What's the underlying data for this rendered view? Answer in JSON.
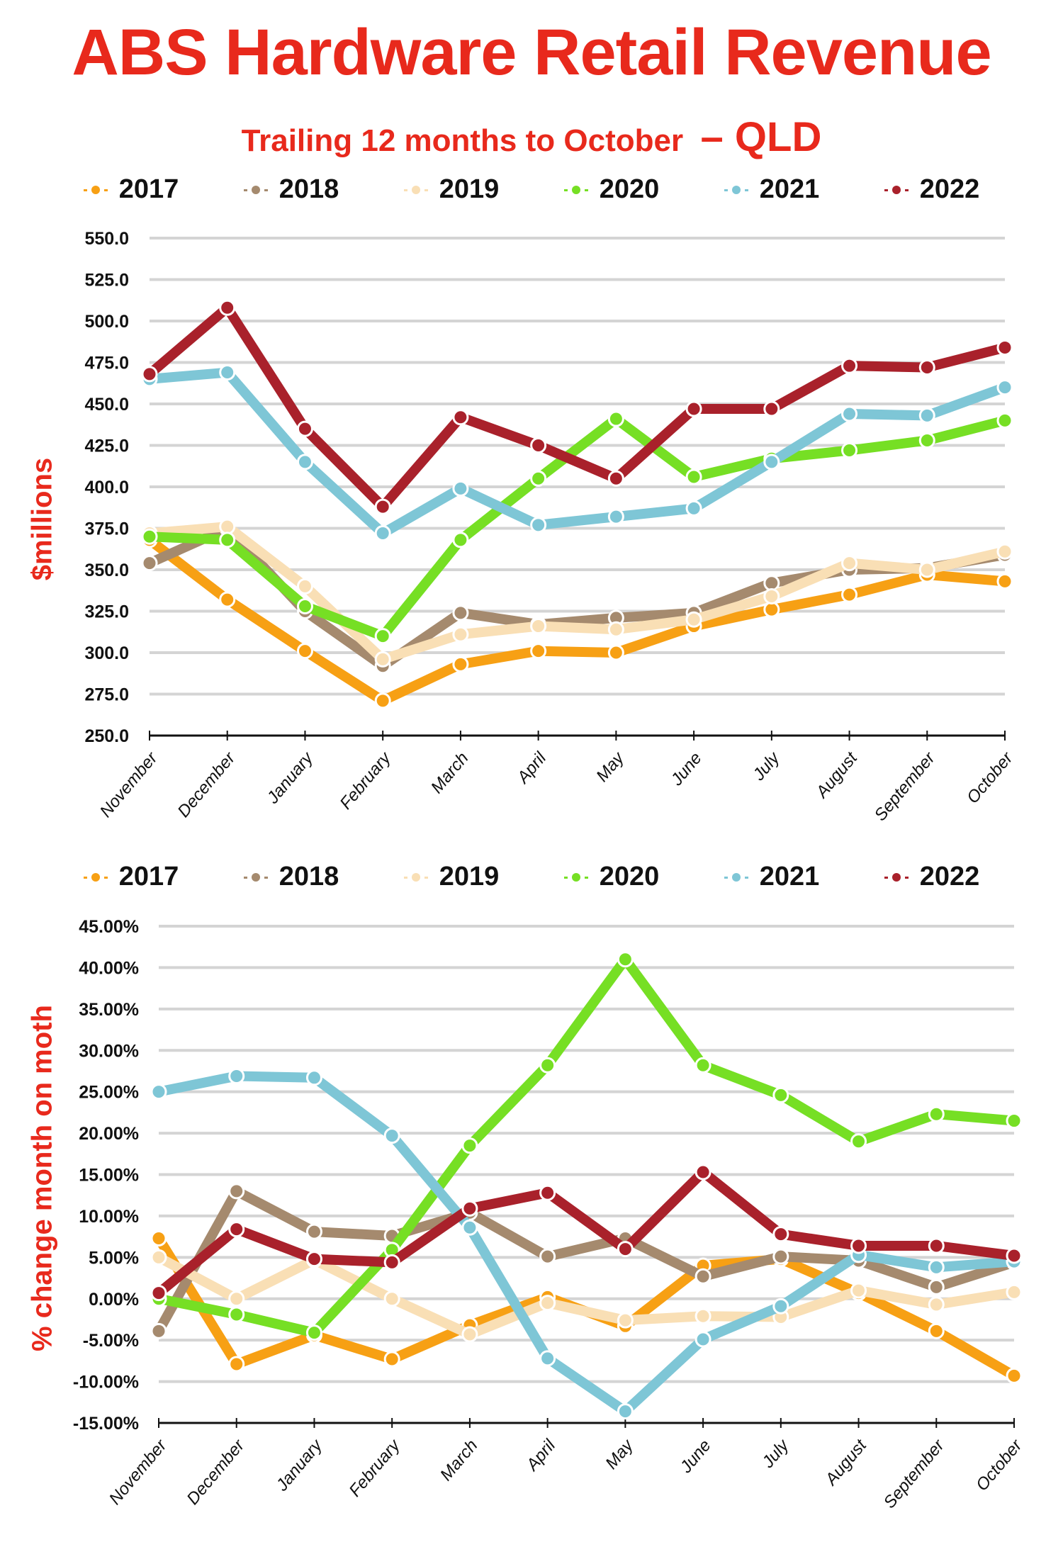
{
  "title": "ABS Hardware Retail Revenue",
  "subtitle": "Trailing 12 months to October",
  "subtitle_suffix": "– QLD",
  "colors": {
    "2017": "#f7a014",
    "2018": "#a58a6e",
    "2019": "#f9dfb5",
    "2020": "#76df24",
    "2021": "#7ec6d6",
    "2022": "#a9212b",
    "accent": "#e8291c"
  },
  "chart_data": [
    {
      "type": "line",
      "title": "ABS Hardware Retail Revenue",
      "subtitle": "Trailing 12 months to October – QLD",
      "xlabel": "",
      "ylabel": "$millions",
      "ylim": [
        250,
        550
      ],
      "yticks": [
        250,
        275,
        300,
        325,
        350,
        375,
        400,
        425,
        450,
        475,
        500,
        525,
        550
      ],
      "ytick_labels": [
        "250.0",
        "275.0",
        "300.0",
        "325.0",
        "350.0",
        "375.0",
        "400.0",
        "425.0",
        "450.0",
        "475.0",
        "500.0",
        "525.0",
        "550.0"
      ],
      "grid": true,
      "legend": "top",
      "categories": [
        "November",
        "December",
        "January",
        "February",
        "March",
        "April",
        "May",
        "June",
        "July",
        "August",
        "September",
        "October"
      ],
      "series": [
        {
          "name": "2017",
          "values": [
            368,
            332,
            301,
            271,
            293,
            301,
            300,
            316,
            326,
            335,
            347,
            343
          ]
        },
        {
          "name": "2018",
          "values": [
            354,
            375,
            325,
            292,
            324,
            317,
            321,
            324,
            342,
            350,
            351,
            359
          ]
        },
        {
          "name": "2019",
          "values": [
            372,
            376,
            340,
            296,
            311,
            316,
            314,
            320,
            334,
            354,
            350,
            361
          ]
        },
        {
          "name": "2020",
          "values": [
            370,
            368,
            328,
            310,
            368,
            405,
            441,
            406,
            417,
            422,
            428,
            440
          ]
        },
        {
          "name": "2021",
          "values": [
            465,
            469,
            415,
            372,
            399,
            377,
            382,
            387,
            415,
            444,
            443,
            460
          ]
        },
        {
          "name": "2022",
          "values": [
            468,
            508,
            435,
            388,
            442,
            425,
            405,
            447,
            447,
            473,
            472,
            484
          ]
        }
      ]
    },
    {
      "type": "line",
      "title": "",
      "xlabel": "",
      "ylabel": "% change month on moth",
      "ylim": [
        -15,
        45
      ],
      "yticks": [
        -15,
        -10,
        -5,
        0,
        5,
        10,
        15,
        20,
        25,
        30,
        35,
        40,
        45
      ],
      "ytick_labels": [
        "-15.00%",
        "-10.00%",
        "-5.00%",
        "0.00%",
        "5.00%",
        "10.00%",
        "15.00%",
        "20.00%",
        "25.00%",
        "30.00%",
        "35.00%",
        "40.00%",
        "45.00%"
      ],
      "grid": true,
      "legend": "top",
      "categories": [
        "November",
        "December",
        "January",
        "February",
        "March",
        "April",
        "May",
        "June",
        "July",
        "August",
        "September",
        "October"
      ],
      "series": [
        {
          "name": "2017",
          "values": [
            7.3,
            -7.9,
            -4.4,
            -7.3,
            -3.2,
            0.2,
            -3.3,
            4.0,
            4.8,
            0.7,
            -3.9,
            -9.3
          ]
        },
        {
          "name": "2018",
          "values": [
            -3.9,
            13.0,
            8.1,
            7.6,
            10.4,
            5.1,
            7.3,
            2.7,
            5.1,
            4.6,
            1.4,
            4.4
          ]
        },
        {
          "name": "2019",
          "values": [
            5.0,
            0.0,
            4.7,
            0.0,
            -4.3,
            -0.5,
            -2.6,
            -2.1,
            -2.2,
            1.0,
            -0.7,
            0.8
          ]
        },
        {
          "name": "2020",
          "values": [
            0.0,
            -1.9,
            -4.1,
            5.9,
            18.5,
            28.2,
            41.0,
            28.2,
            24.6,
            19.0,
            22.3,
            21.5
          ]
        },
        {
          "name": "2021",
          "values": [
            25.0,
            26.9,
            26.7,
            19.7,
            8.6,
            -7.2,
            -13.6,
            -4.9,
            -0.9,
            5.3,
            3.8,
            4.5
          ]
        },
        {
          "name": "2022",
          "values": [
            0.7,
            8.4,
            4.8,
            4.4,
            10.9,
            12.8,
            6.0,
            15.3,
            7.8,
            6.4,
            6.4,
            5.2
          ]
        }
      ]
    }
  ]
}
